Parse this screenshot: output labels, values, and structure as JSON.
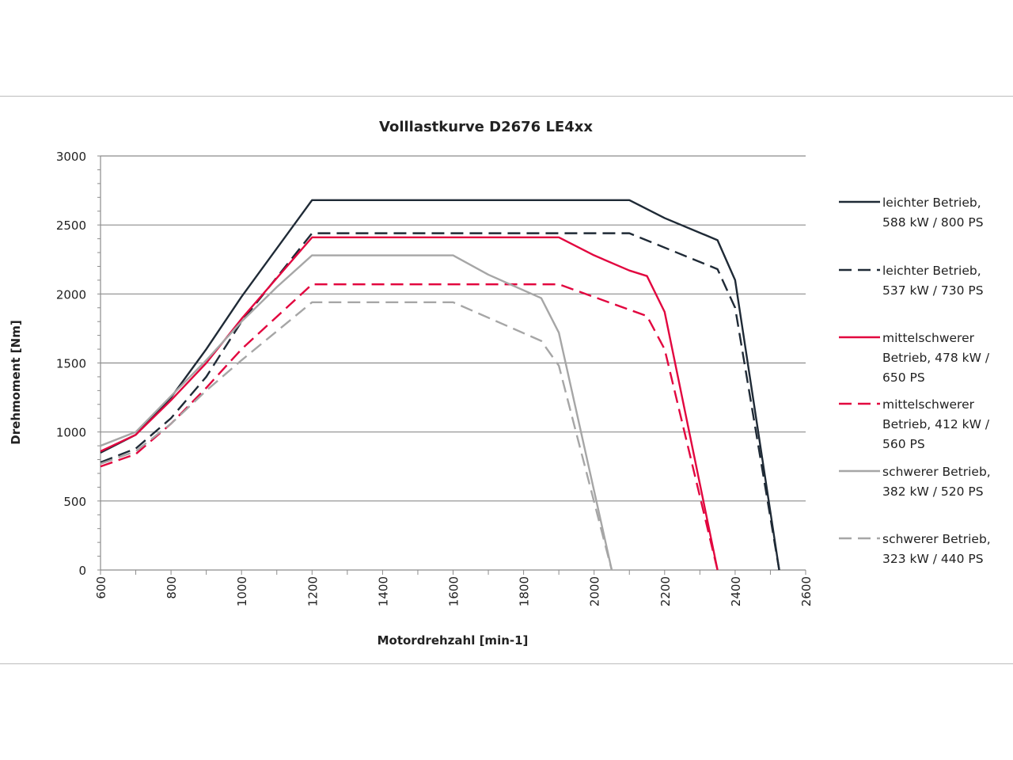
{
  "chart_data": {
    "type": "line",
    "title": "Volllastkurve D2676 LE4xx",
    "xlabel": "Motordrehzahl [min-1]",
    "ylabel": "Drehmoment [Nm]",
    "xlim": [
      600,
      2600
    ],
    "ylim": [
      0,
      3000
    ],
    "xticks": [
      600,
      800,
      1000,
      1200,
      1400,
      1600,
      1800,
      2000,
      2200,
      2400,
      2600
    ],
    "yticks": [
      0,
      500,
      1000,
      1500,
      2000,
      2500,
      3000
    ],
    "grid": "horizontal",
    "legend_position": "right",
    "series": [
      {
        "name": "leichter Betrieb, 588 kW / 800 PS",
        "legend_lines": [
          "leichter Betrieb,",
          "588 kW / 800 PS"
        ],
        "color": "#1f2a36",
        "dash": false,
        "x": [
          600,
          700,
          800,
          900,
          1000,
          1200,
          2100,
          2200,
          2350,
          2400,
          2525
        ],
        "y": [
          850,
          980,
          1250,
          1600,
          1980,
          2680,
          2680,
          2550,
          2390,
          2100,
          0
        ]
      },
      {
        "name": "leichter Betrieb, 537 kW / 730 PS",
        "legend_lines": [
          "leichter Betrieb,",
          "537 kW / 730 PS"
        ],
        "color": "#1f2a36",
        "dash": true,
        "x": [
          600,
          700,
          800,
          900,
          1000,
          1200,
          2100,
          2350,
          2400,
          2525
        ],
        "y": [
          780,
          880,
          1100,
          1400,
          1800,
          2440,
          2440,
          2180,
          1900,
          0
        ]
      },
      {
        "name": "mittelschwerer Betrieb, 478 kW / 650 PS",
        "legend_lines": [
          "mittelschwerer",
          "Betrieb, 478 kW /",
          "650 PS"
        ],
        "color": "#e2063f",
        "dash": false,
        "x": [
          600,
          700,
          800,
          900,
          1000,
          1200,
          1900,
          2000,
          2100,
          2150,
          2200,
          2350
        ],
        "y": [
          860,
          980,
          1230,
          1500,
          1820,
          2410,
          2410,
          2280,
          2170,
          2130,
          1870,
          0
        ]
      },
      {
        "name": "mittelschwerer Betrieb, 412 kW / 560 PS",
        "legend_lines": [
          "mittelschwerer",
          "Betrieb, 412 kW /",
          "560 PS"
        ],
        "color": "#e2063f",
        "dash": true,
        "x": [
          600,
          700,
          800,
          900,
          1000,
          1200,
          1900,
          2150,
          2200,
          2350
        ],
        "y": [
          750,
          840,
          1060,
          1320,
          1600,
          2070,
          2070,
          1840,
          1600,
          0
        ]
      },
      {
        "name": "schwerer Betrieb, 382 kW / 520 PS",
        "legend_lines": [
          "schwerer Betrieb,",
          "382 kW / 520 PS"
        ],
        "color": "#a6a6a6",
        "dash": false,
        "x": [
          600,
          700,
          800,
          900,
          1000,
          1100,
          1200,
          1600,
          1700,
          1850,
          1900,
          2050
        ],
        "y": [
          900,
          1000,
          1260,
          1520,
          1800,
          2050,
          2280,
          2280,
          2140,
          1970,
          1720,
          0
        ]
      },
      {
        "name": "schwerer Betrieb, 323 kW / 440 PS",
        "legend_lines": [
          "schwerer Betrieb,",
          "323 kW / 440 PS"
        ],
        "color": "#a6a6a6",
        "dash": true,
        "x": [
          600,
          700,
          800,
          900,
          1000,
          1200,
          1600,
          1850,
          1900,
          2050
        ],
        "y": [
          770,
          860,
          1060,
          1300,
          1520,
          1940,
          1940,
          1660,
          1480,
          0
        ]
      }
    ]
  }
}
